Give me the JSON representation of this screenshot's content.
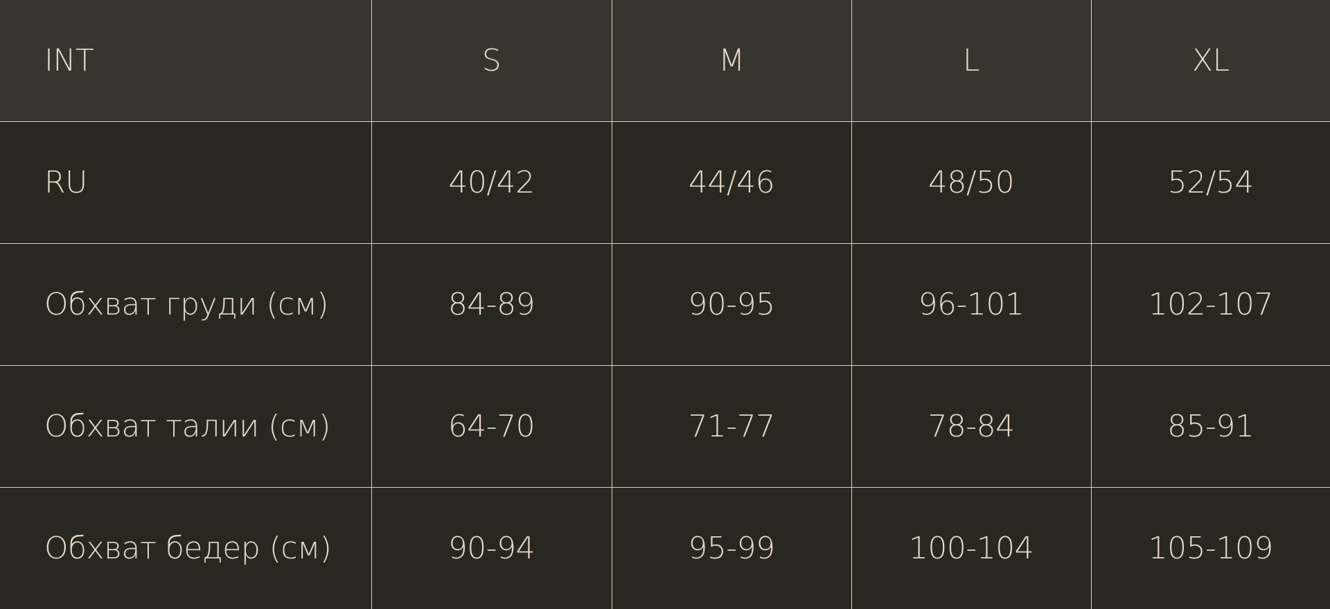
{
  "header": [
    "INT",
    "S",
    "M",
    "L",
    "XL"
  ],
  "rows": [
    [
      "RU",
      "40/42",
      "44/46",
      "48/50",
      "52/54"
    ],
    [
      "Обхват груди (см)",
      "84-89",
      "90-95",
      "96-101",
      "102-107"
    ],
    [
      "Обхват талии (см)",
      "64-70",
      "71-77",
      "78-84",
      "85-91"
    ],
    [
      "Обхват бедер (см)",
      "90-94",
      "95-99",
      "100-104",
      "105-109"
    ]
  ],
  "colors": {
    "header_bg": "#36362f",
    "body_bg": "#282720",
    "line": "#e2d2bd",
    "text": "#e6d8c6"
  }
}
